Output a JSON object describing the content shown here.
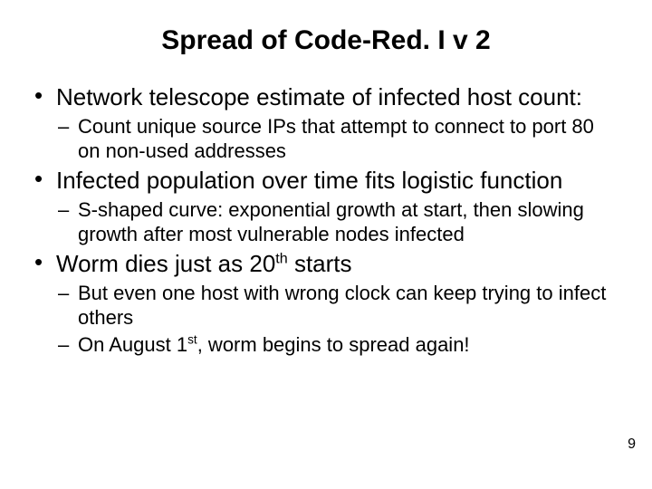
{
  "title": "Spread of Code-Red. I v 2",
  "title_fontsize": 30,
  "body_color": "#000000",
  "l1_fontsize": 26,
  "l2_fontsize": 22,
  "bullets": [
    {
      "text": "Network telescope estimate of infected host count:",
      "sub": [
        {
          "text": "Count unique source IPs that attempt to connect to port 80 on non-used addresses"
        }
      ]
    },
    {
      "text_html": "Infected population over time fits logistic function",
      "sub": [
        {
          "text": "S-shaped curve: exponential growth at start, then slowing growth after most vulnerable nodes infected"
        }
      ]
    },
    {
      "text_html": "Worm dies just as 20<sup>th</sup> starts",
      "sub": [
        {
          "text": "But even one host with wrong clock can keep trying to infect others"
        },
        {
          "text_html": "On August 1<sup>st</sup>, worm begins to spread again!"
        }
      ]
    }
  ],
  "page_number": "9",
  "page_number_fontsize": 16,
  "background_color": "#ffffff"
}
